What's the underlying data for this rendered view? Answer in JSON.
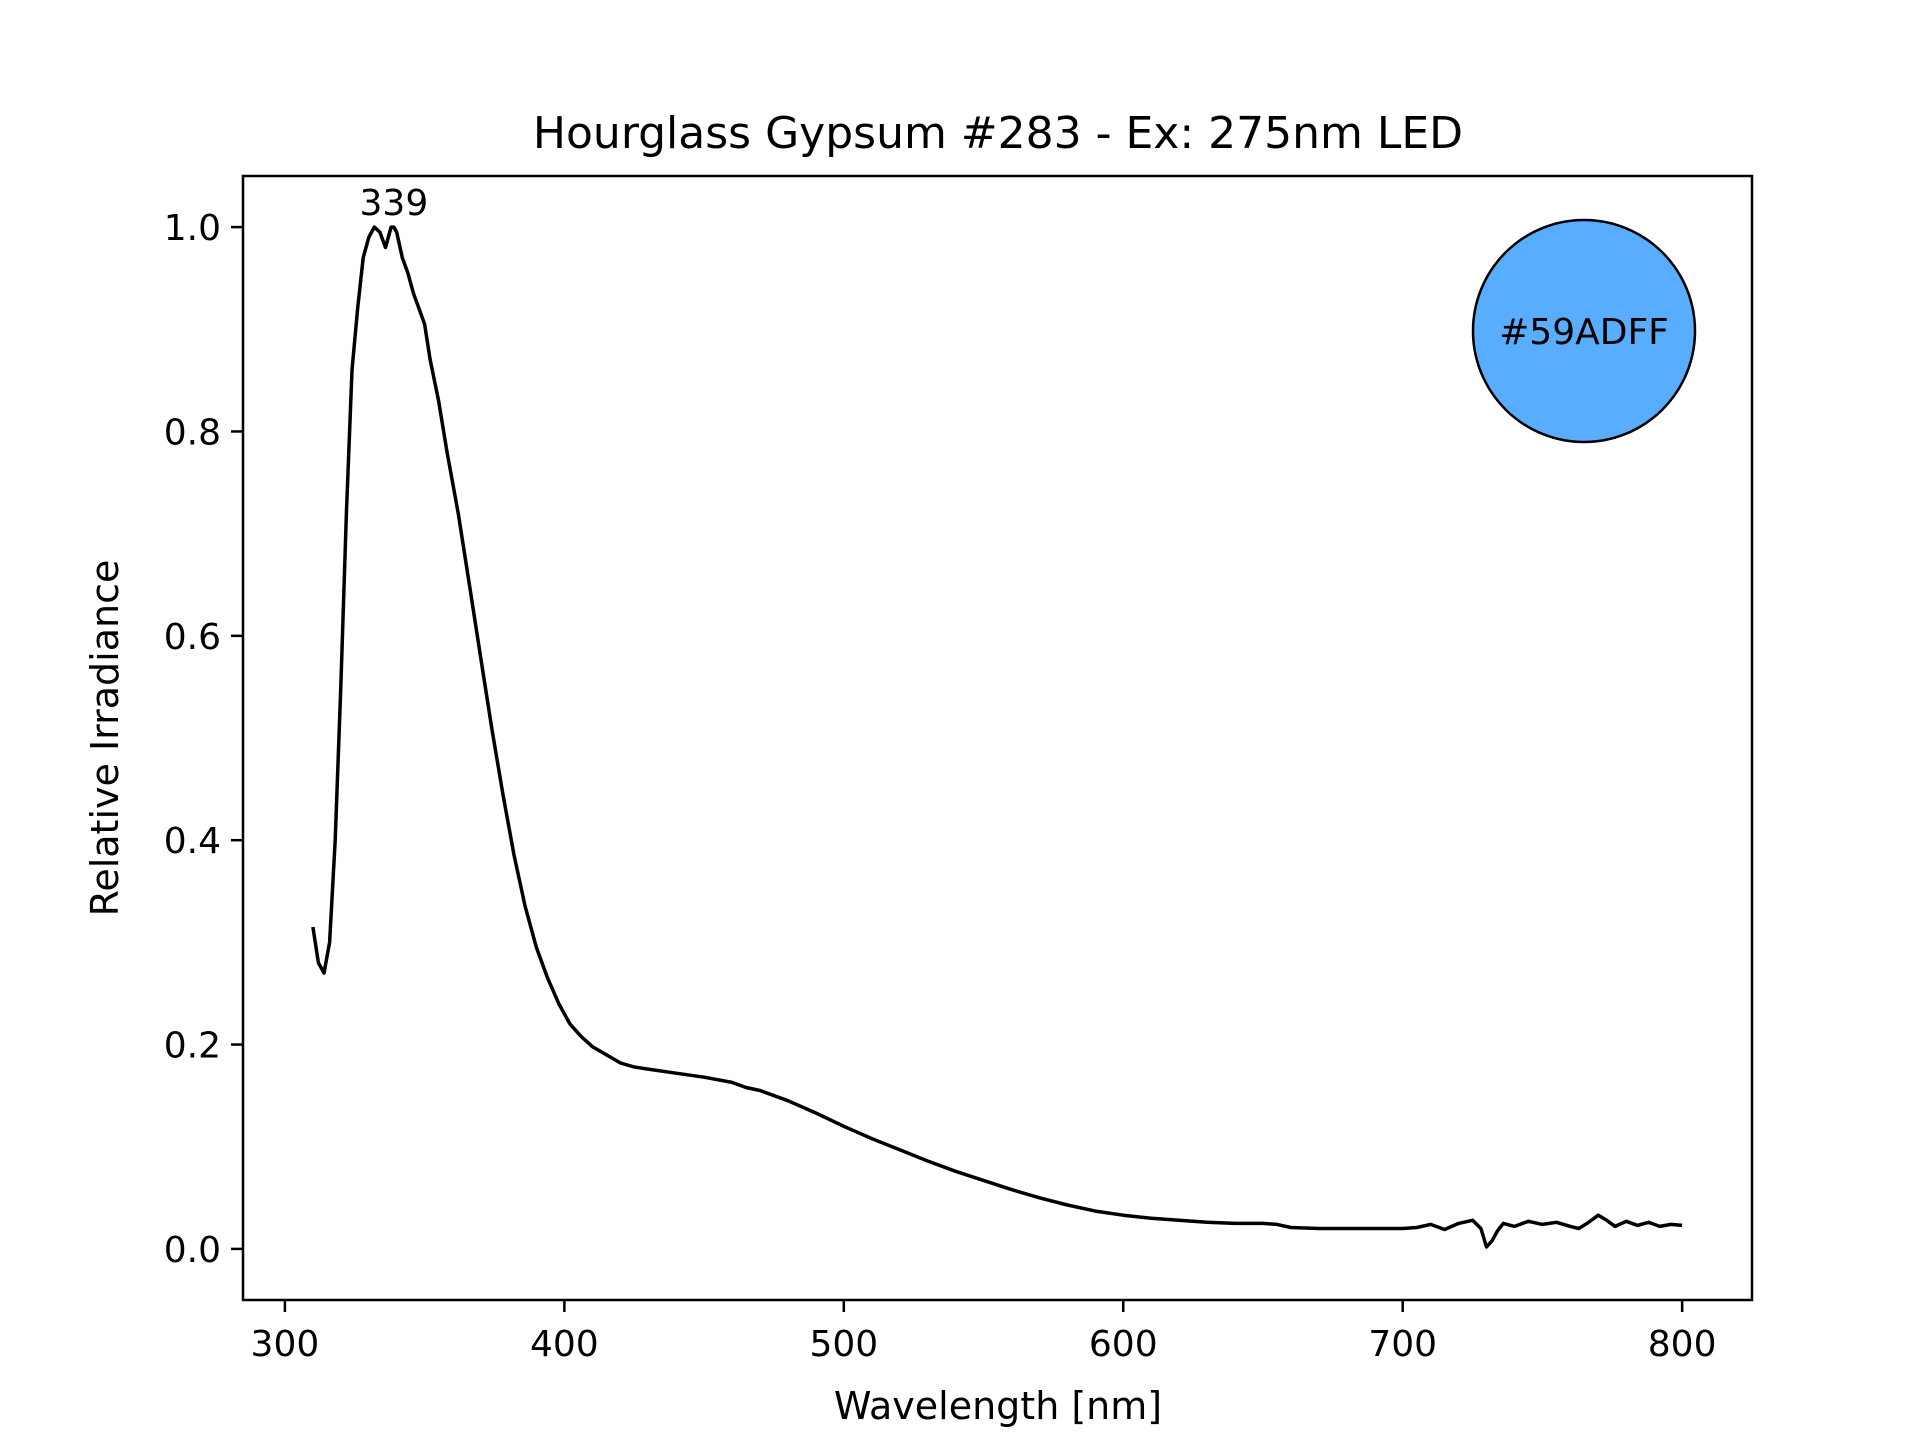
{
  "chart_data": {
    "type": "line",
    "title": "Hourglass Gypsum #283 - Ex: 275nm LED",
    "xlabel": "Wavelength [nm]",
    "ylabel": "Relative Irradiance",
    "xlim": [
      285,
      825
    ],
    "ylim": [
      -0.05,
      1.05
    ],
    "xticks": [
      300,
      400,
      500,
      600,
      700,
      800
    ],
    "yticks": [
      0.0,
      0.2,
      0.4,
      0.6,
      0.8,
      1.0
    ],
    "xtick_labels": [
      "300",
      "400",
      "500",
      "600",
      "700",
      "800"
    ],
    "ytick_labels": [
      "0.0",
      "0.2",
      "0.4",
      "0.6",
      "0.8",
      "1.0"
    ],
    "grid": false,
    "line_color": "#000000",
    "peak_annotation": {
      "x": 339,
      "y": 1.0,
      "label": "339"
    },
    "color_swatch": {
      "label": "#59ADFF",
      "fill": "#59ADFF"
    },
    "series": [
      {
        "x": [
          310,
          312,
          314,
          316,
          318,
          320,
          322,
          324,
          326,
          328,
          330,
          332,
          334,
          336,
          338,
          339,
          340,
          342,
          344,
          346,
          348,
          350,
          352,
          355,
          358,
          362,
          366,
          370,
          374,
          378,
          382,
          386,
          390,
          394,
          398,
          402,
          406,
          410,
          415,
          420,
          425,
          430,
          440,
          450,
          460,
          465,
          470,
          480,
          490,
          500,
          510,
          520,
          530,
          540,
          550,
          560,
          570,
          580,
          590,
          600,
          610,
          620,
          630,
          640,
          650,
          655,
          660,
          670,
          680,
          690,
          700,
          705,
          710,
          715,
          720,
          725,
          728,
          730,
          732,
          734,
          736,
          740,
          745,
          750,
          755,
          760,
          763,
          766,
          770,
          773,
          776,
          780,
          784,
          788,
          792,
          796,
          800
        ],
        "y": [
          0.315,
          0.28,
          0.27,
          0.3,
          0.4,
          0.55,
          0.72,
          0.86,
          0.92,
          0.97,
          0.99,
          1.0,
          0.995,
          0.98,
          1.0,
          1.0,
          0.995,
          0.97,
          0.955,
          0.935,
          0.92,
          0.905,
          0.87,
          0.83,
          0.78,
          0.72,
          0.65,
          0.58,
          0.51,
          0.445,
          0.385,
          0.335,
          0.295,
          0.265,
          0.24,
          0.22,
          0.208,
          0.198,
          0.19,
          0.182,
          0.178,
          0.176,
          0.172,
          0.168,
          0.163,
          0.158,
          0.155,
          0.145,
          0.133,
          0.12,
          0.108,
          0.097,
          0.086,
          0.076,
          0.067,
          0.058,
          0.05,
          0.043,
          0.037,
          0.033,
          0.03,
          0.028,
          0.026,
          0.025,
          0.025,
          0.024,
          0.021,
          0.02,
          0.02,
          0.02,
          0.02,
          0.021,
          0.024,
          0.019,
          0.025,
          0.028,
          0.02,
          0.002,
          0.008,
          0.018,
          0.025,
          0.022,
          0.027,
          0.024,
          0.026,
          0.022,
          0.02,
          0.025,
          0.033,
          0.028,
          0.022,
          0.027,
          0.023,
          0.026,
          0.022,
          0.024,
          0.023
        ]
      }
    ]
  }
}
